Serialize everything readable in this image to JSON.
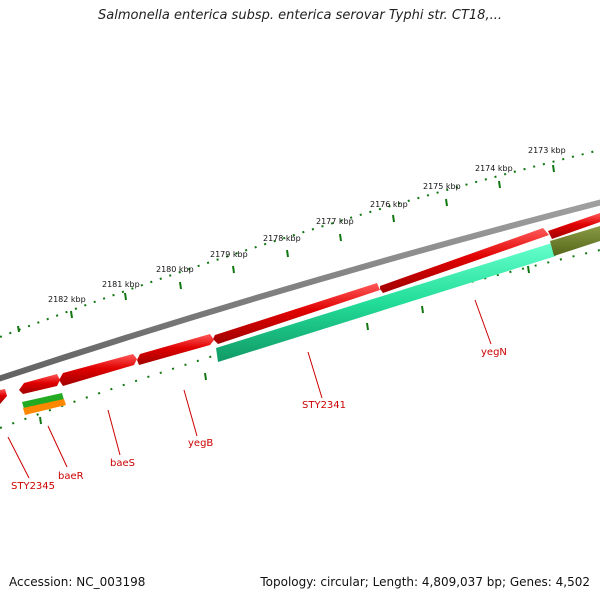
{
  "title": "Salmonella enterica subsp. enterica serovar Typhi str. CT18,...",
  "footer": {
    "accession": "Accession: NC_003198",
    "topology": "Topology: circular; Length: 4,809,037 bp; Genes: 4,502"
  },
  "scale_labels": [
    "2173 kbp",
    "2174 kbp",
    "2175 kbp",
    "2176 kbp",
    "2177 kbp",
    "2178 kbp",
    "2179 kbp",
    "2180 kbp",
    "2181 kbp",
    "2182 kbp"
  ],
  "genes": [
    {
      "label": "yegN",
      "color": "#e00000"
    },
    {
      "label": "STY2341",
      "color": "#e00000"
    },
    {
      "label": "yegB",
      "color": "#e00000"
    },
    {
      "label": "baeS",
      "color": "#e00000"
    },
    {
      "label": "baeR",
      "color": "#e00000"
    },
    {
      "label": "STY2345",
      "color": "#e00000"
    }
  ],
  "colors": {
    "backbone": "#808080",
    "cds": "#e00000",
    "rna": "#22dd99",
    "green": "#22aa22",
    "orange": "#ff8800",
    "olive": "#667a22",
    "ticks": "#117711",
    "label": "#cc0000"
  }
}
